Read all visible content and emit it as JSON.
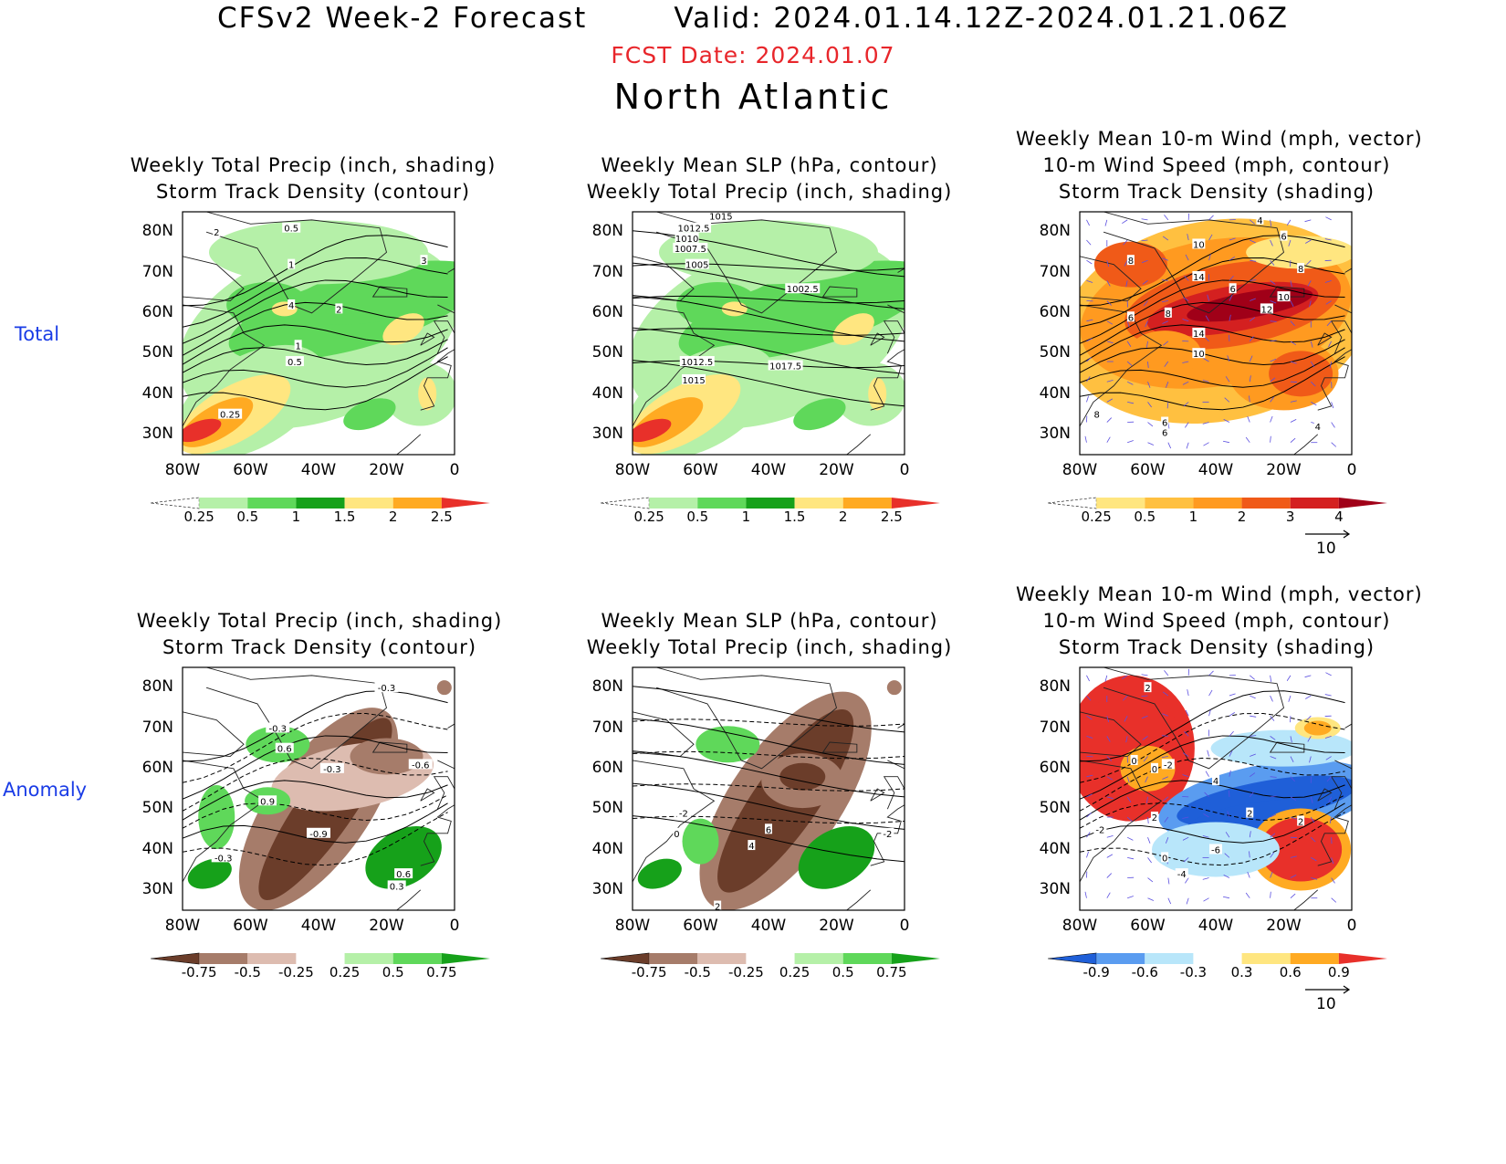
{
  "header": {
    "title": "CFSv2 Week-2 Forecast",
    "valid": "Valid: 2024.01.14.12Z-2024.01.21.06Z",
    "fcst_date": "FCST Date: 2024.01.07",
    "region": "North Atlantic"
  },
  "rows": {
    "total": "Total",
    "anomaly": "Anomaly"
  },
  "axes": {
    "lat": [
      "80N",
      "70N",
      "60N",
      "50N",
      "40N",
      "30N"
    ],
    "lon": [
      "80W",
      "60W",
      "40W",
      "20W",
      "0"
    ]
  },
  "panels": [
    {
      "id": "p1",
      "t1": "Weekly Total Precip (inch, shading)",
      "t2": "Storm Track Density (contour)",
      "t3": "",
      "contour_labels": [
        "2",
        "0.5",
        "1",
        "3",
        "4",
        "2",
        "1",
        "0.5",
        "0.25"
      ],
      "colorbar": [
        "0.25",
        "0.5",
        "1",
        "1.5",
        "2",
        "2.5"
      ],
      "colors": [
        "#ffffff",
        "#b5f0a8",
        "#5fd85a",
        "#16a11a",
        "#ffe680",
        "#ffaa22",
        "#e8302a"
      ]
    },
    {
      "id": "p2",
      "t1": "Weekly Mean SLP (hPa, contour)",
      "t2": "Weekly Total Precip (inch, shading)",
      "t3": "",
      "contour_labels": [
        "1015",
        "1012.5",
        "1010",
        "1007.5",
        "1005",
        "1002.5",
        "1012.5",
        "1015",
        "1017.5"
      ],
      "colorbar": [
        "0.25",
        "0.5",
        "1",
        "1.5",
        "2",
        "2.5"
      ],
      "colors": [
        "#ffffff",
        "#b5f0a8",
        "#5fd85a",
        "#16a11a",
        "#ffe680",
        "#ffaa22",
        "#e8302a"
      ]
    },
    {
      "id": "p3",
      "t1": "Weekly Mean 10-m Wind (mph, vector)",
      "t2": "10-m Wind Speed (mph, contour)",
      "t3": "Storm Track Density (shading)",
      "contour_labels": [
        "4",
        "6",
        "10",
        "8",
        "14",
        "6",
        "8",
        "12",
        "8",
        "6",
        "14",
        "10",
        "10",
        "8",
        "6",
        "6",
        "4"
      ],
      "colorbar": [
        "0.25",
        "0.5",
        "1",
        "2",
        "3",
        "4"
      ],
      "colors": [
        "#ffffff",
        "#ffe680",
        "#ffc040",
        "#ff9a20",
        "#f05a18",
        "#d42020",
        "#a00018"
      ],
      "vector_ref": "10"
    },
    {
      "id": "p4",
      "t1": "Weekly Total Precip (inch, shading)",
      "t2": "Storm Track Density (contour)",
      "t3": "",
      "contour_labels": [
        "-0.3",
        "-0.3",
        "0.6",
        "-0.3",
        "-0.6",
        "0.9",
        "-0.9",
        "0.6",
        "0.3",
        "-0.3"
      ],
      "colorbar": [
        "-0.75",
        "-0.5",
        "-0.25",
        "0.25",
        "0.5",
        "0.75"
      ],
      "colors": [
        "#6b3d2a",
        "#a67c6a",
        "#ddbcb0",
        "#ffffff",
        "#b5f0a8",
        "#5fd85a",
        "#16a11a"
      ]
    },
    {
      "id": "p5",
      "t1": "Weekly Mean SLP (hPa, contour)",
      "t2": "Weekly Total Precip (inch, shading)",
      "t3": "",
      "contour_labels": [
        "-2",
        "0",
        "6",
        "4",
        "-2",
        "2"
      ],
      "colorbar": [
        "-0.75",
        "-0.5",
        "-0.25",
        "0.25",
        "0.5",
        "0.75"
      ],
      "colors": [
        "#6b3d2a",
        "#a67c6a",
        "#ddbcb0",
        "#ffffff",
        "#b5f0a8",
        "#5fd85a",
        "#16a11a"
      ]
    },
    {
      "id": "p6",
      "t1": "Weekly Mean 10-m Wind (mph, vector)",
      "t2": "10-m Wind Speed (mph, contour)",
      "t3": "Storm Track Density (shading)",
      "contour_labels": [
        "2",
        "0",
        "0",
        "-2",
        "2",
        "4",
        "-2",
        "2",
        "-6",
        "0",
        "-4",
        "2"
      ],
      "colorbar": [
        "-0.9",
        "-0.6",
        "-0.3",
        "0.3",
        "0.6",
        "0.9"
      ],
      "colors": [
        "#1f5fd8",
        "#5a9cf0",
        "#b8e6fa",
        "#ffffff",
        "#ffe680",
        "#ffaa22",
        "#e8302a"
      ],
      "vector_ref": "10"
    }
  ]
}
